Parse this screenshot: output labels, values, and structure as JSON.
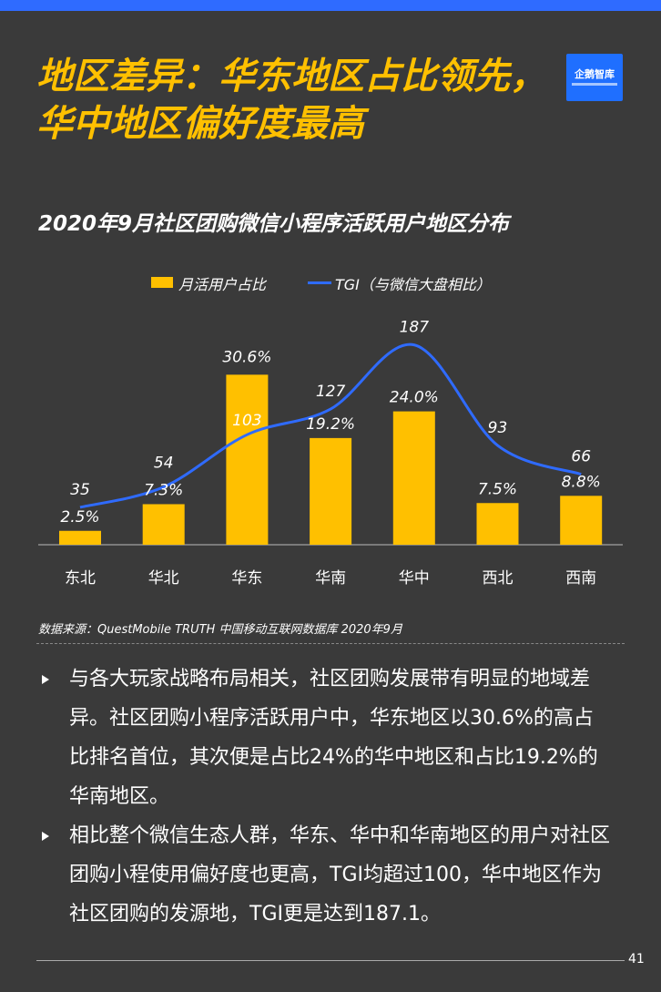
{
  "header": {
    "title_line1": "地区差异：华东地区占比领先，",
    "title_line2": "华中地区偏好度最高",
    "logo_text": "企鹅智库"
  },
  "chart_data": {
    "type": "bar",
    "title": "2020年9月社区团购微信小程序活跃用户地区分布",
    "categories": [
      "东北",
      "华北",
      "华东",
      "华南",
      "华中",
      "西北",
      "西南"
    ],
    "series": [
      {
        "name": "月活用户占比",
        "type": "bar",
        "values": [
          2.5,
          7.3,
          30.6,
          19.2,
          24.0,
          7.5,
          8.8
        ],
        "labels": [
          "2.5%",
          "7.3%",
          "30.6%",
          "19.2%",
          "24.0%",
          "7.5%",
          "8.8%"
        ]
      },
      {
        "name": "TGI（与微信大盘相比）",
        "type": "line",
        "values": [
          35,
          54,
          103,
          127,
          187,
          93,
          66
        ],
        "labels": [
          "35",
          "54",
          "103",
          "127",
          "187",
          "93",
          "66"
        ]
      }
    ],
    "xlabel": "",
    "ylabel": "",
    "ylim_bar": [
      0,
      40
    ],
    "ylim_line": [
      0,
      240
    ],
    "legend_position": "top"
  },
  "source": "数据来源：QuestMobile TRUTH 中国移动互联网数据库 2020年9月",
  "bullets": [
    "与各大玩家战略布局相关，社区团购发展带有明显的地域差异。社区团购小程序活跃用户中，华东地区以30.6%的高占比排名首位，其次便是占比24%的华中地区和占比19.2%的华南地区。",
    "相比整个微信生态人群，华东、华中和华南地区的用户对社区团购小程使用偏好度也更高，TGI均超过100，华中地区作为社区团购的发源地，TGI更是达到187.1。"
  ],
  "page_number": "41",
  "colors": {
    "bar": "#ffc000",
    "line": "#2f6bff",
    "title": "#ffc000",
    "background": "#3a3a3a"
  }
}
